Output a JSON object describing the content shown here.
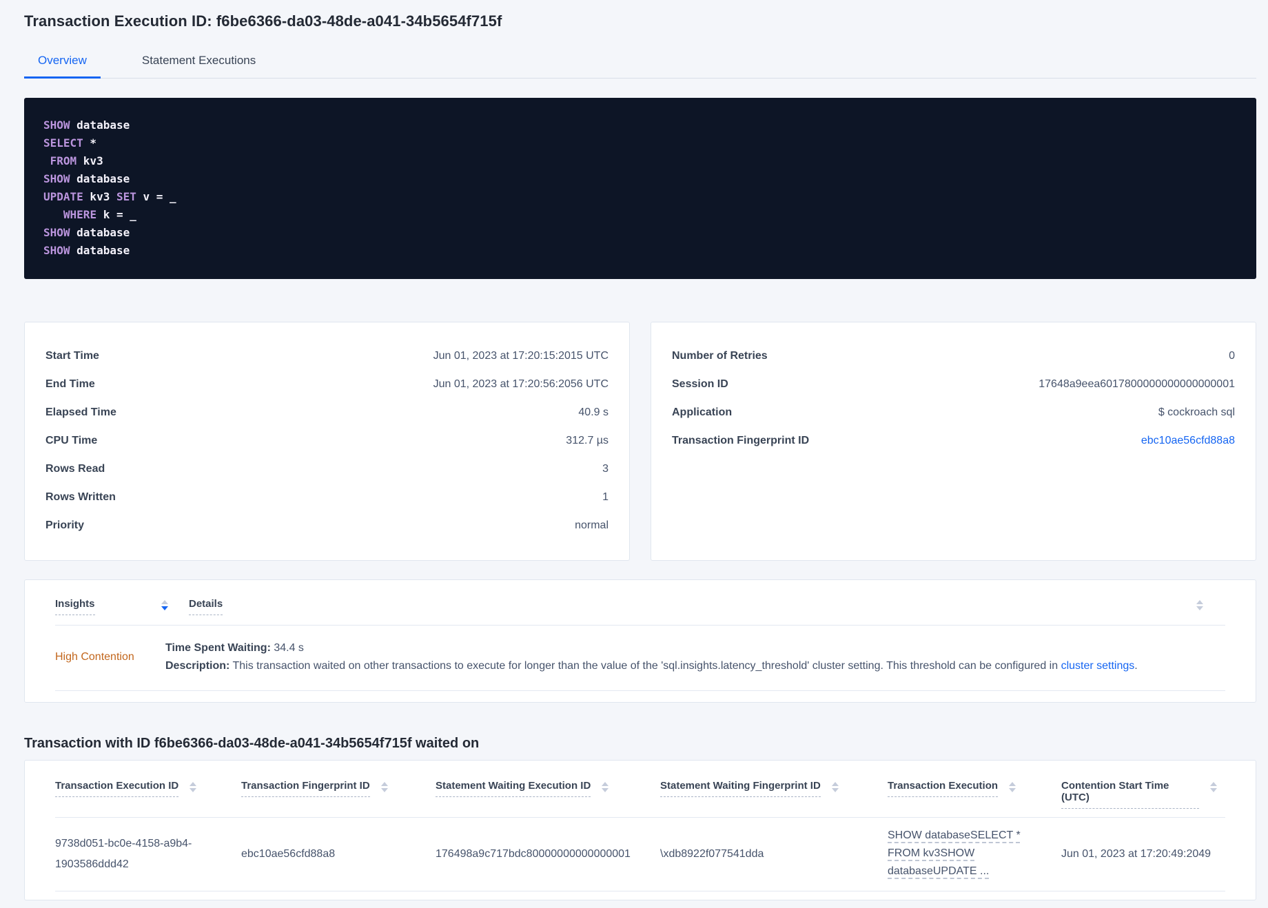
{
  "header": {
    "title": "Transaction Execution ID: f6be6366-da03-48de-a041-34b5654f715f",
    "tabs": [
      {
        "label": "Overview"
      },
      {
        "label": "Statement Executions"
      }
    ]
  },
  "sql": {
    "lines": [
      {
        "k1": "SHOW",
        "mid": " database"
      },
      {
        "k1": "SELECT",
        "mid": " *"
      },
      {
        "pre": " ",
        "k1": "FROM",
        "mid": " kv3"
      },
      {
        "k1": "SHOW",
        "mid": " database"
      },
      {
        "k1": "UPDATE",
        "mid": " kv3 ",
        "k2": "SET",
        "post": " v = _"
      },
      {
        "pre": "   ",
        "k1": "WHERE",
        "mid": " k = _"
      },
      {
        "k1": "SHOW",
        "mid": " database"
      },
      {
        "k1": "SHOW",
        "mid": " database"
      }
    ]
  },
  "overview_left": {
    "rows": [
      {
        "label": "Start Time",
        "value": "Jun 01, 2023 at 17:20:15:2015 UTC"
      },
      {
        "label": "End Time",
        "value": "Jun 01, 2023 at 17:20:56:2056 UTC"
      },
      {
        "label": "Elapsed Time",
        "value": "40.9 s"
      },
      {
        "label": "CPU Time",
        "value": "312.7 µs"
      },
      {
        "label": "Rows Read",
        "value": "3"
      },
      {
        "label": "Rows Written",
        "value": "1"
      },
      {
        "label": "Priority",
        "value": "normal"
      }
    ]
  },
  "overview_right": {
    "rows": [
      {
        "label": "Number of Retries",
        "value": "0"
      },
      {
        "label": "Session ID",
        "value": "17648a9eea6017800000000000000001"
      },
      {
        "label": "Application",
        "value": "$ cockroach sql"
      },
      {
        "label": "Transaction Fingerprint ID",
        "value": "ebc10ae56cfd88a8"
      }
    ]
  },
  "insights": {
    "col_insights": "Insights",
    "col_details": "Details",
    "row": {
      "insight": "High Contention",
      "waiting_label": "Time Spent Waiting:",
      "waiting_value": " 34.4 s",
      "description_label": "Description:",
      "description_text": " This transaction waited on other transactions to execute for longer than the value of the 'sql.insights.latency_threshold' cluster setting. This threshold can be configured in ",
      "description_link": "cluster settings",
      "description_suffix": "."
    }
  },
  "waited_on": {
    "heading": "Transaction with ID f6be6366-da03-48de-a041-34b5654f715f waited on",
    "columns": [
      "Transaction Execution ID",
      "Transaction Fingerprint ID",
      "Statement Waiting Execution ID",
      "Statement Waiting Fingerprint ID",
      "Transaction Execution",
      "Contention Start Time (UTC)"
    ],
    "row": {
      "transaction_execution_id": "9738d051-bc0e-4158-a9b4-1903586ddd42",
      "transaction_fingerprint_id": "ebc10ae56cfd88a8",
      "statement_waiting_execution_id": "176498a9c717bdc80000000000000001",
      "statement_waiting_fingerprint_id": "\\xdb8922f077541dda",
      "transaction_execution": "SHOW databaseSELECT * FROM kv3SHOW databaseUPDATE ...",
      "contention_start_time": "Jun 01, 2023 at 17:20:49:2049"
    }
  },
  "colors": {
    "accent_blue": "#1565f2",
    "insight_orange": "#c2661c",
    "code_background": "#0d1526",
    "code_keyword": "#bb95de",
    "code_text": "#f4f2fb",
    "page_background": "#f4f6fa"
  }
}
